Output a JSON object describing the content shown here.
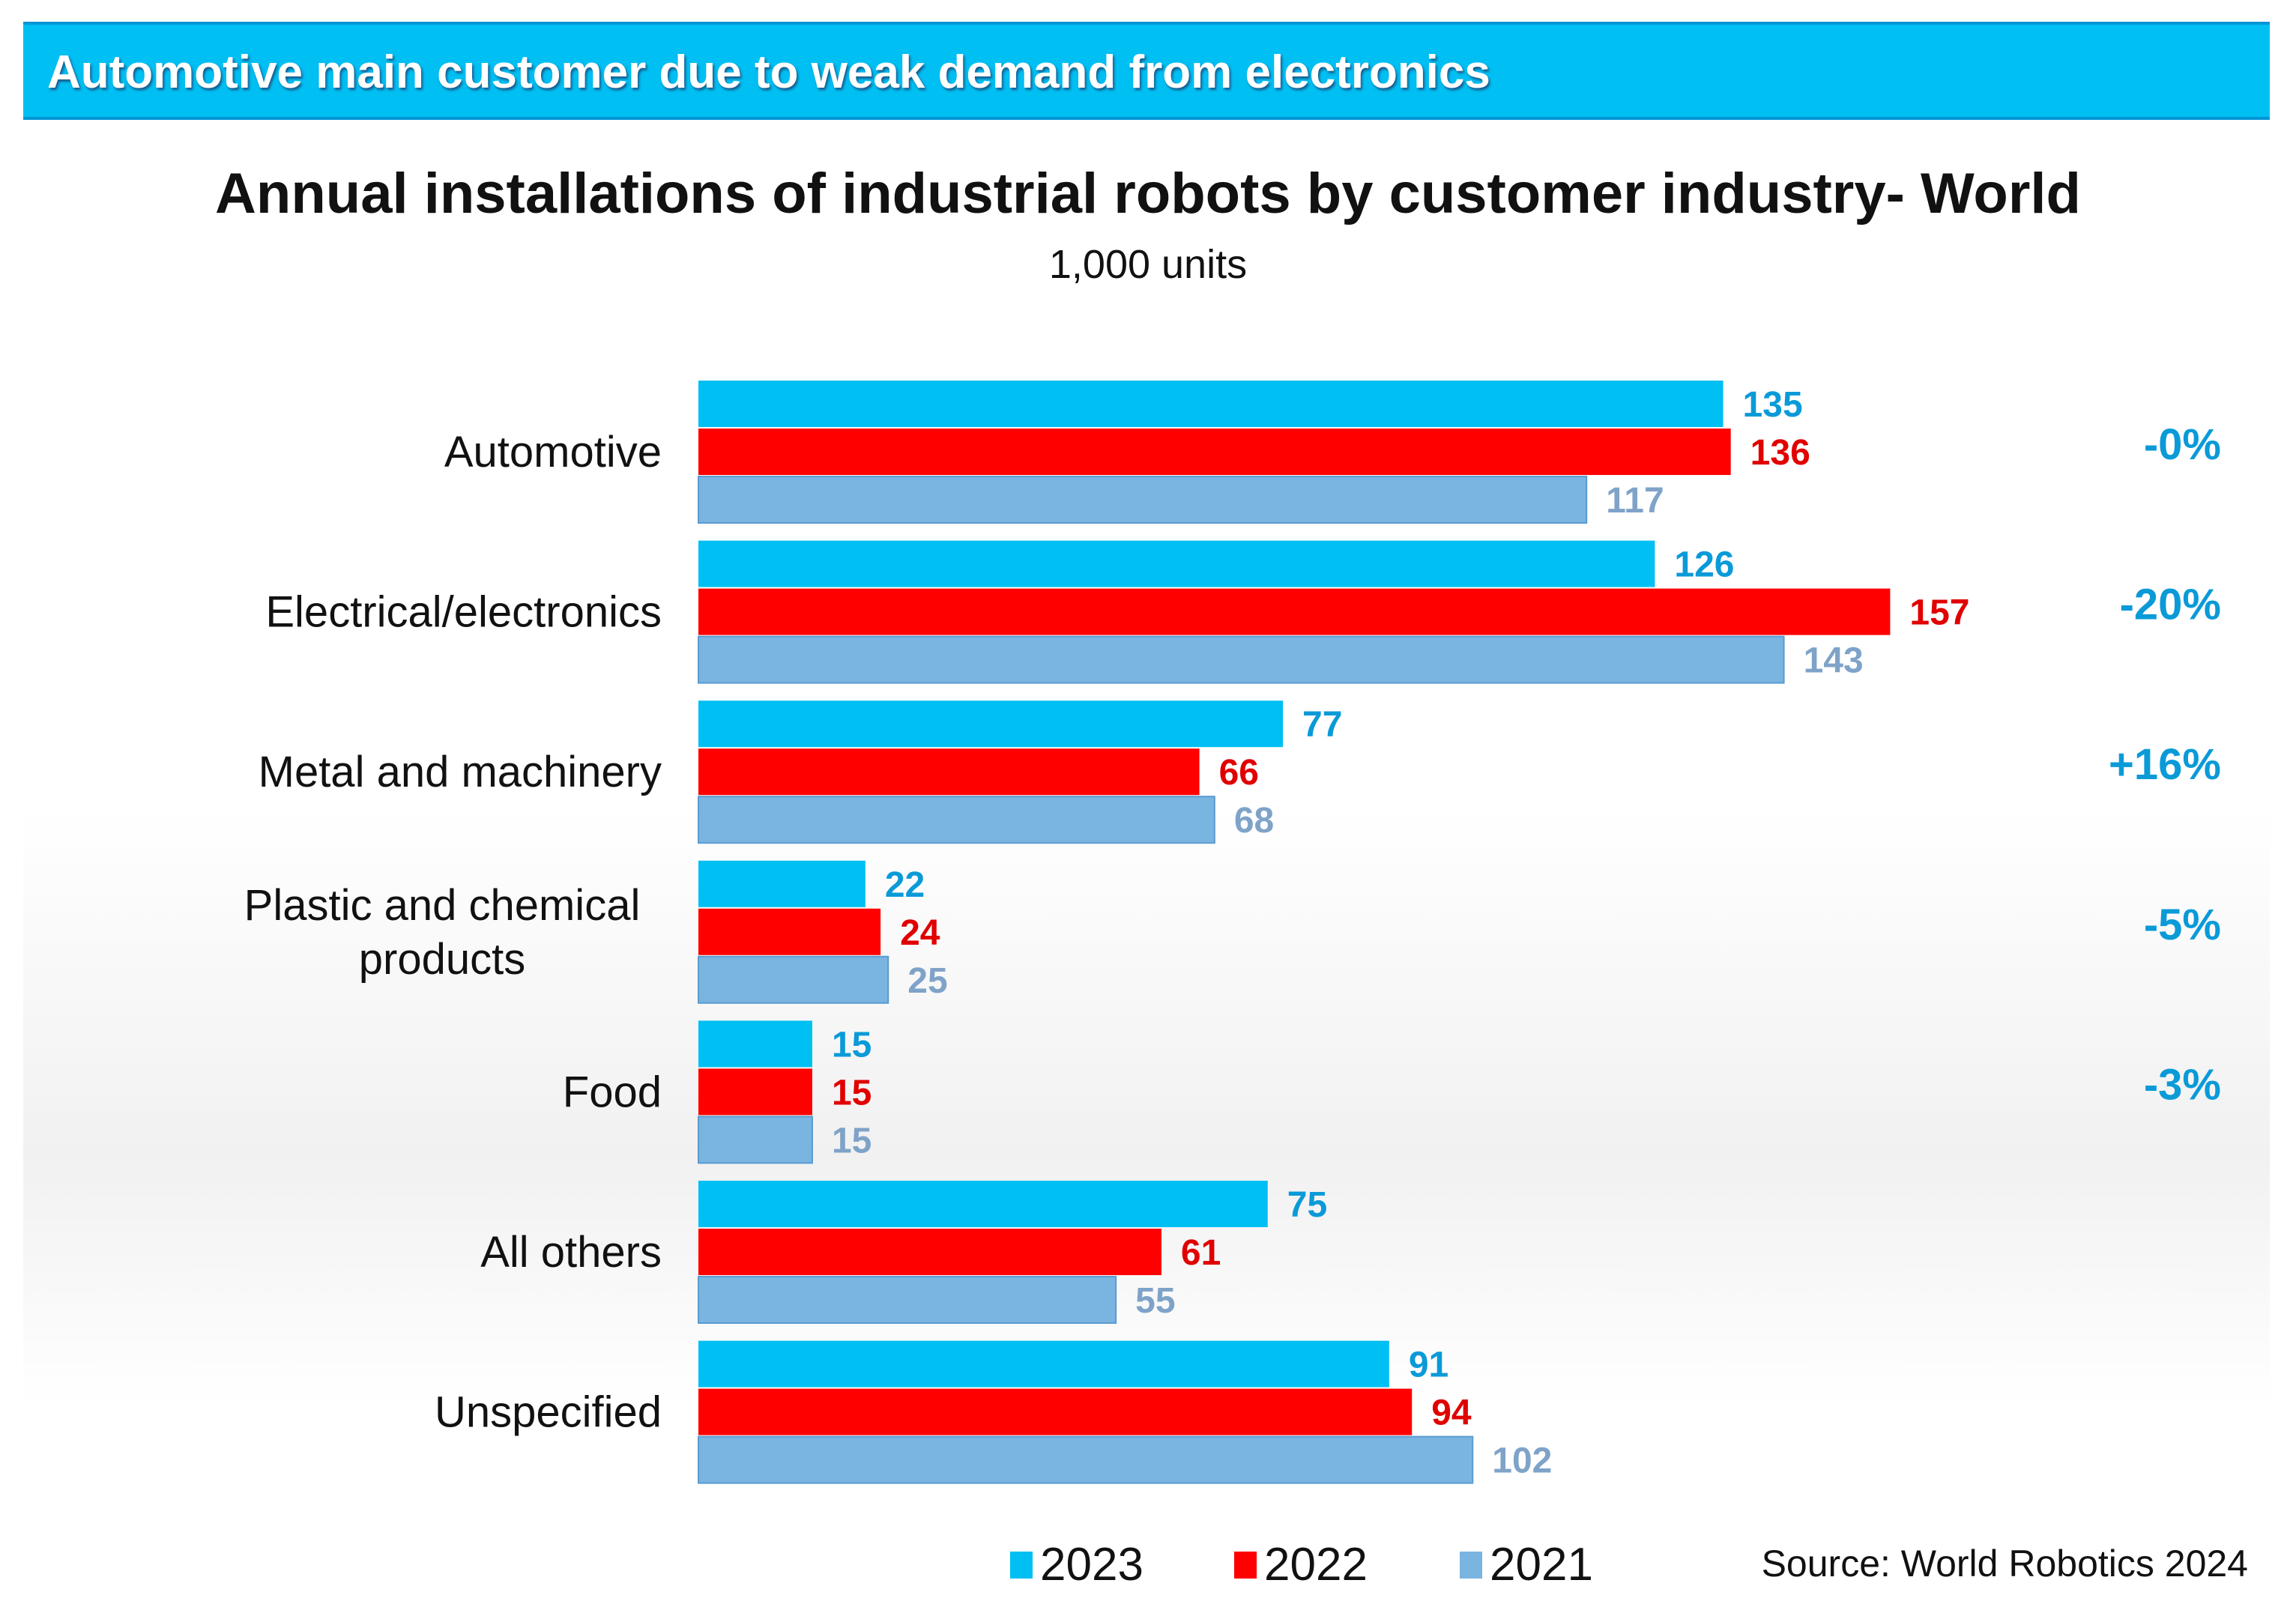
{
  "banner": {
    "text": "Automotive main customer due to weak demand from electronics"
  },
  "chart_data": {
    "type": "bar",
    "orientation": "horizontal",
    "title": "Annual installations of industrial robots by customer industry- World",
    "subtitle": "1,000 units",
    "categories": [
      "Automotive",
      "Electrical/electronics",
      "Metal and machinery",
      "Plastic and chemical products",
      "Food",
      "All others",
      "Unspecified"
    ],
    "category_lines": [
      [
        "Automotive"
      ],
      [
        "Electrical/electronics"
      ],
      [
        "Metal and machinery"
      ],
      [
        "Plastic and chemical",
        "products"
      ],
      [
        "Food"
      ],
      [
        "All others"
      ],
      [
        "Unspecified"
      ]
    ],
    "series": [
      {
        "name": "2023",
        "color": "#00bff3",
        "label_color": "#0a9ad8",
        "values": [
          135,
          126,
          77,
          22,
          15,
          75,
          91
        ]
      },
      {
        "name": "2022",
        "color": "#ff0000",
        "label_color": "#e00000",
        "values": [
          136,
          157,
          66,
          24,
          15,
          61,
          94
        ]
      },
      {
        "name": "2021",
        "color": "#7ab4e0",
        "label_color": "#7fa3c8",
        "values": [
          117,
          143,
          68,
          25,
          15,
          55,
          102
        ]
      }
    ],
    "change_labels": [
      "-0%",
      "-20%",
      "+16%",
      "-5%",
      "-3%",
      "",
      ""
    ],
    "change_color": "#0a9ad8",
    "xlim": [
      0,
      160
    ],
    "grid": false,
    "legend": "bottom"
  },
  "legend": [
    {
      "label": "2023",
      "color": "#00bff3"
    },
    {
      "label": "2022",
      "color": "#ff0000"
    },
    {
      "label": "2021",
      "color": "#7ab4e0"
    }
  ],
  "source": "Source: World Robotics 2024"
}
